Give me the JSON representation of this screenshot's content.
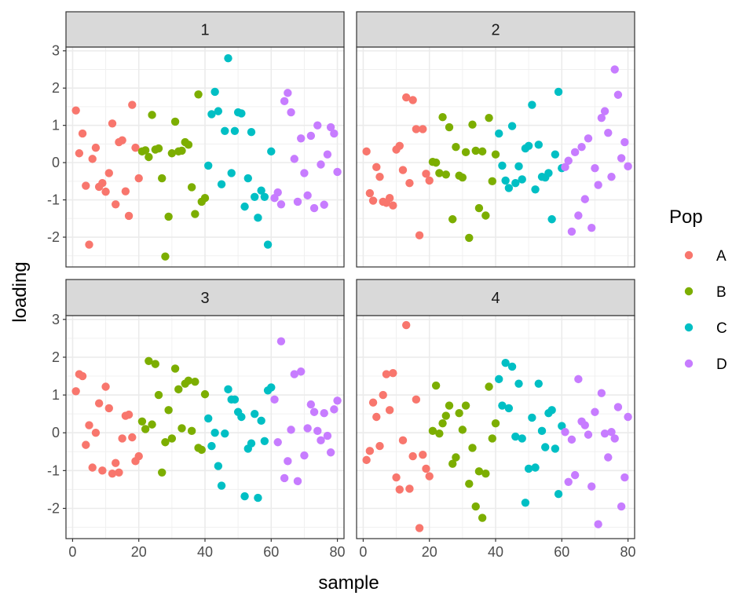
{
  "chart_data": {
    "type": "scatter",
    "xlabel": "sample",
    "ylabel": "loading",
    "xlim": [
      -2,
      82
    ],
    "ylim": [
      -2.8,
      3.1
    ],
    "xticks": [
      0,
      20,
      40,
      60,
      80
    ],
    "yticks": [
      -2,
      -1,
      0,
      1,
      2,
      3
    ],
    "grid": true,
    "legend": {
      "title": "Pop",
      "placement": "right",
      "entries": [
        {
          "name": "A",
          "color": "#F8766D"
        },
        {
          "name": "B",
          "color": "#7CAE00"
        },
        {
          "name": "C",
          "color": "#00BFC4"
        },
        {
          "name": "D",
          "color": "#C77CFF"
        }
      ]
    },
    "facets": [
      {
        "label": "1",
        "series": [
          {
            "name": "A",
            "x": [
              1,
              2,
              3,
              4,
              5,
              6,
              7,
              8,
              9,
              10,
              11,
              12,
              13,
              14,
              15,
              16,
              17,
              18,
              19,
              20
            ],
            "y": [
              1.4,
              0.25,
              0.78,
              -0.62,
              -2.2,
              0.1,
              0.4,
              -0.65,
              -0.55,
              -0.78,
              -0.28,
              1.05,
              -1.12,
              0.55,
              0.6,
              -0.77,
              -1.43,
              1.55,
              0.4,
              -0.42
            ]
          },
          {
            "name": "B",
            "x": [
              21,
              22,
              23,
              24,
              25,
              26,
              27,
              28,
              29,
              30,
              31,
              32,
              33,
              34,
              35,
              36,
              37,
              38,
              39,
              40
            ],
            "y": [
              0.3,
              0.33,
              0.15,
              1.28,
              0.35,
              0.38,
              -0.42,
              -2.52,
              -1.45,
              0.25,
              1.1,
              0.3,
              0.32,
              0.55,
              0.48,
              -0.66,
              -1.38,
              1.83,
              -1.05,
              -0.95
            ]
          },
          {
            "name": "C",
            "x": [
              41,
              42,
              43,
              44,
              45,
              46,
              47,
              48,
              49,
              50,
              51,
              52,
              53,
              54,
              55,
              56,
              57,
              58,
              59,
              60
            ],
            "y": [
              -0.08,
              1.3,
              1.9,
              1.38,
              -0.58,
              0.85,
              2.8,
              -0.28,
              0.85,
              1.35,
              1.32,
              -1.18,
              -0.42,
              0.82,
              -0.92,
              -1.48,
              -0.75,
              -0.92,
              -2.2,
              0.3
            ]
          },
          {
            "name": "D",
            "x": [
              61,
              62,
              63,
              64,
              65,
              66,
              67,
              68,
              69,
              70,
              71,
              72,
              73,
              74,
              75,
              76,
              77,
              78,
              79,
              80
            ],
            "y": [
              -0.95,
              -0.8,
              -1.12,
              1.65,
              1.87,
              1.35,
              0.1,
              -1.05,
              0.65,
              -0.28,
              -0.88,
              0.72,
              -1.22,
              1.0,
              -0.05,
              -1.13,
              0.22,
              0.95,
              0.78,
              -0.25
            ]
          }
        ]
      },
      {
        "label": "2",
        "series": [
          {
            "name": "A",
            "x": [
              1,
              2,
              3,
              4,
              5,
              6,
              7,
              8,
              9,
              10,
              11,
              12,
              13,
              14,
              15,
              16,
              17,
              18,
              19,
              20
            ],
            "y": [
              0.3,
              -0.82,
              -1.02,
              -0.12,
              -0.38,
              -1.05,
              -1.08,
              -0.95,
              -1.15,
              0.35,
              0.45,
              -0.2,
              1.75,
              -0.55,
              1.68,
              0.9,
              -1.95,
              0.9,
              -0.3,
              -0.48
            ]
          },
          {
            "name": "B",
            "x": [
              21,
              22,
              23,
              24,
              25,
              26,
              27,
              28,
              29,
              30,
              31,
              32,
              33,
              34,
              35,
              36,
              37,
              38,
              39,
              40
            ],
            "y": [
              0.02,
              0.0,
              -0.28,
              1.22,
              -0.32,
              0.95,
              -1.52,
              0.42,
              -0.35,
              -0.4,
              0.28,
              -2.02,
              1.02,
              0.32,
              -1.22,
              0.3,
              -1.42,
              1.2,
              -0.5,
              0.22
            ]
          },
          {
            "name": "C",
            "x": [
              41,
              42,
              43,
              44,
              45,
              46,
              47,
              48,
              49,
              50,
              51,
              52,
              53,
              54,
              55,
              56,
              57,
              58,
              59,
              60
            ],
            "y": [
              0.78,
              -0.08,
              -0.48,
              -0.68,
              0.98,
              -0.55,
              -0.1,
              -0.45,
              0.38,
              0.45,
              1.55,
              -0.72,
              0.48,
              -0.38,
              -0.4,
              -0.28,
              -1.52,
              0.22,
              1.9,
              -0.15
            ]
          },
          {
            "name": "D",
            "x": [
              61,
              62,
              63,
              64,
              65,
              66,
              67,
              68,
              69,
              70,
              71,
              72,
              73,
              74,
              75,
              76,
              77,
              78,
              79,
              80
            ],
            "y": [
              -0.12,
              0.05,
              -1.85,
              0.28,
              -1.42,
              0.42,
              -0.98,
              0.65,
              -1.75,
              -0.15,
              -0.6,
              1.2,
              1.38,
              0.8,
              -0.38,
              2.5,
              1.82,
              0.12,
              0.55,
              -0.1
            ]
          }
        ]
      },
      {
        "label": "3",
        "series": [
          {
            "name": "A",
            "x": [
              1,
              2,
              3,
              4,
              5,
              6,
              7,
              8,
              9,
              10,
              11,
              12,
              13,
              14,
              15,
              16,
              17,
              18,
              19,
              20
            ],
            "y": [
              1.1,
              1.55,
              1.5,
              -0.32,
              0.2,
              -0.92,
              0.0,
              0.78,
              -1.0,
              1.22,
              0.65,
              -1.08,
              -0.8,
              -1.05,
              -0.15,
              0.45,
              0.48,
              -0.12,
              -0.75,
              -0.62
            ]
          },
          {
            "name": "B",
            "x": [
              21,
              22,
              23,
              24,
              25,
              26,
              27,
              28,
              29,
              30,
              31,
              32,
              33,
              34,
              35,
              36,
              37,
              38,
              39,
              40
            ],
            "y": [
              0.3,
              0.1,
              1.9,
              0.22,
              1.82,
              1.0,
              -1.05,
              -0.25,
              0.6,
              -0.15,
              1.7,
              1.15,
              0.12,
              1.3,
              1.38,
              0.05,
              1.35,
              -0.4,
              -0.45,
              1.02
            ]
          },
          {
            "name": "C",
            "x": [
              41,
              42,
              43,
              44,
              45,
              46,
              47,
              48,
              49,
              50,
              51,
              52,
              53,
              54,
              55,
              56,
              57,
              58,
              59,
              60
            ],
            "y": [
              0.38,
              -0.35,
              0.0,
              -0.88,
              -1.4,
              -0.02,
              1.15,
              0.88,
              0.88,
              0.55,
              0.42,
              -1.68,
              -0.42,
              -0.28,
              0.5,
              -1.72,
              0.32,
              -0.22,
              1.12,
              1.2
            ]
          },
          {
            "name": "D",
            "x": [
              61,
              62,
              63,
              64,
              65,
              66,
              67,
              68,
              69,
              70,
              71,
              72,
              73,
              74,
              75,
              76,
              77,
              78,
              79,
              80
            ],
            "y": [
              0.88,
              -0.25,
              2.42,
              -1.2,
              -0.75,
              0.08,
              1.55,
              -1.28,
              1.62,
              -0.6,
              0.12,
              0.75,
              0.55,
              0.05,
              -0.2,
              0.52,
              -0.08,
              -0.52,
              0.62,
              0.85
            ]
          }
        ]
      },
      {
        "label": "4",
        "series": [
          {
            "name": "A",
            "x": [
              1,
              2,
              3,
              4,
              5,
              6,
              7,
              8,
              9,
              10,
              11,
              12,
              13,
              14,
              15,
              16,
              17,
              18,
              19,
              20
            ],
            "y": [
              -0.72,
              -0.48,
              0.8,
              0.42,
              -0.35,
              1.0,
              1.55,
              0.6,
              1.58,
              -1.18,
              -1.5,
              -0.2,
              2.85,
              -1.48,
              -0.62,
              0.88,
              -2.52,
              -0.58,
              -0.95,
              -1.15
            ]
          },
          {
            "name": "B",
            "x": [
              21,
              22,
              23,
              24,
              25,
              26,
              27,
              28,
              29,
              30,
              31,
              32,
              33,
              34,
              35,
              36,
              37,
              38,
              39,
              40
            ],
            "y": [
              0.05,
              1.25,
              -0.02,
              0.25,
              0.45,
              0.72,
              -0.82,
              -0.65,
              0.52,
              0.08,
              0.72,
              -1.35,
              -0.4,
              -1.95,
              -1.02,
              -2.25,
              -1.08,
              1.22,
              -0.15,
              0.25
            ]
          },
          {
            "name": "C",
            "x": [
              41,
              42,
              43,
              44,
              45,
              46,
              47,
              48,
              49,
              50,
              51,
              52,
              53,
              54,
              55,
              56,
              57,
              58,
              59,
              60
            ],
            "y": [
              1.42,
              0.72,
              1.85,
              0.65,
              1.75,
              -0.1,
              1.3,
              -0.15,
              -1.85,
              -0.95,
              0.4,
              -0.92,
              1.3,
              0.05,
              -0.38,
              0.52,
              0.6,
              -0.42,
              -1.62,
              0.18
            ]
          },
          {
            "name": "D",
            "x": [
              61,
              62,
              63,
              64,
              65,
              66,
              67,
              68,
              69,
              70,
              71,
              72,
              73,
              74,
              75,
              76,
              77,
              78,
              79,
              80
            ],
            "y": [
              0.02,
              -1.3,
              -0.18,
              -1.12,
              1.42,
              0.3,
              0.2,
              -0.05,
              -1.42,
              0.55,
              -2.42,
              1.05,
              -0.02,
              -0.65,
              0.02,
              -0.15,
              0.68,
              -1.95,
              -1.18,
              0.42
            ]
          }
        ]
      }
    ]
  }
}
